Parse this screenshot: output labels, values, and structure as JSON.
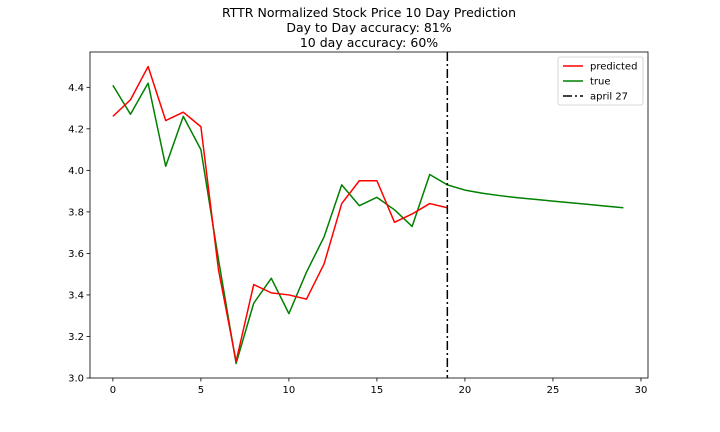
{
  "chart_data": {
    "type": "line",
    "title_lines": [
      "RTTR Normalized Stock Price 10 Day Prediction",
      "Day to Day accuracy: 81%",
      "10 day accuracy: 60%"
    ],
    "xlabel": "",
    "ylabel": "",
    "xlim": [
      -1.3,
      30.4
    ],
    "ylim": [
      3.0,
      4.57
    ],
    "xticks": [
      0,
      5,
      10,
      15,
      20,
      25,
      30
    ],
    "yticks": [
      3.0,
      3.2,
      3.4,
      3.6,
      3.8,
      4.0,
      4.2,
      4.4
    ],
    "grid": false,
    "legend_position": "top-right",
    "series": [
      {
        "name": "predicted",
        "color": "#ff0000",
        "x": [
          0,
          1,
          2,
          3,
          4,
          5,
          6,
          7,
          8,
          9,
          10,
          11,
          12,
          13,
          14,
          15,
          16,
          17,
          18,
          19
        ],
        "y": [
          4.26,
          4.34,
          4.5,
          4.24,
          4.28,
          4.21,
          3.52,
          3.08,
          3.45,
          3.41,
          3.4,
          3.38,
          3.55,
          3.84,
          3.95,
          3.95,
          3.75,
          3.79,
          3.84,
          3.82
        ]
      },
      {
        "name": "true",
        "color": "#008000",
        "x": [
          0,
          1,
          2,
          3,
          4,
          5,
          6,
          7,
          8,
          9,
          10,
          11,
          12,
          13,
          14,
          15,
          16,
          17,
          18,
          19,
          20,
          21,
          22,
          23,
          24,
          25,
          26,
          27,
          28,
          29
        ],
        "y": [
          4.41,
          4.27,
          4.42,
          4.02,
          4.26,
          4.1,
          3.57,
          3.07,
          3.36,
          3.48,
          3.31,
          3.51,
          3.68,
          3.93,
          3.83,
          3.87,
          3.81,
          3.73,
          3.98,
          3.93,
          3.905,
          3.89,
          3.878,
          3.868,
          3.86,
          3.852,
          3.844,
          3.836,
          3.828,
          3.82
        ]
      }
    ],
    "vline": {
      "name": "april 27",
      "x": 19,
      "color": "#000000",
      "style": "dashdot"
    }
  }
}
